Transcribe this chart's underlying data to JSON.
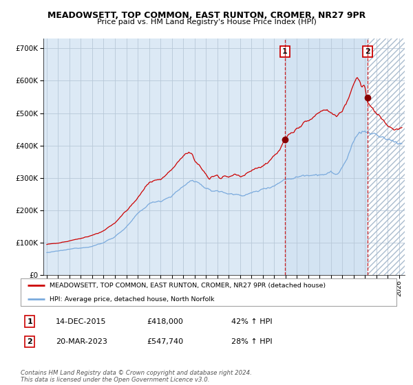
{
  "title": "MEADOWSETT, TOP COMMON, EAST RUNTON, CROMER, NR27 9PR",
  "subtitle": "Price paid vs. HM Land Registry's House Price Index (HPI)",
  "legend_line1": "MEADOWSETT, TOP COMMON, EAST RUNTON, CROMER, NR27 9PR (detached house)",
  "legend_line2": "HPI: Average price, detached house, North Norfolk",
  "annotation1_label": "1",
  "annotation1_date": "14-DEC-2015",
  "annotation1_price": "£418,000",
  "annotation1_hpi": "42% ↑ HPI",
  "annotation2_label": "2",
  "annotation2_date": "20-MAR-2023",
  "annotation2_price": "£547,740",
  "annotation2_hpi": "28% ↑ HPI",
  "footer": "Contains HM Land Registry data © Crown copyright and database right 2024.\nThis data is licensed under the Open Government Licence v3.0.",
  "bg_color": "#dce9f5",
  "hatch_color": "#aabcce",
  "grid_color": "#b8c8d8",
  "red_line_color": "#cc0000",
  "blue_line_color": "#7aaadd",
  "dot_color": "#880000",
  "vline_color": "#cc0000",
  "box_color": "#cc0000",
  "ylim": [
    0,
    730000
  ],
  "xlim_start": 1994.7,
  "xlim_end": 2026.5,
  "sale1_x": 2015.96,
  "sale1_y": 418000,
  "sale2_x": 2023.22,
  "sale2_y": 547740,
  "xlabel_years": [
    1995,
    1996,
    1997,
    1998,
    1999,
    2000,
    2001,
    2002,
    2003,
    2004,
    2005,
    2006,
    2007,
    2008,
    2009,
    2010,
    2011,
    2012,
    2013,
    2014,
    2015,
    2016,
    2017,
    2018,
    2019,
    2020,
    2021,
    2022,
    2023,
    2024,
    2025,
    2026
  ]
}
